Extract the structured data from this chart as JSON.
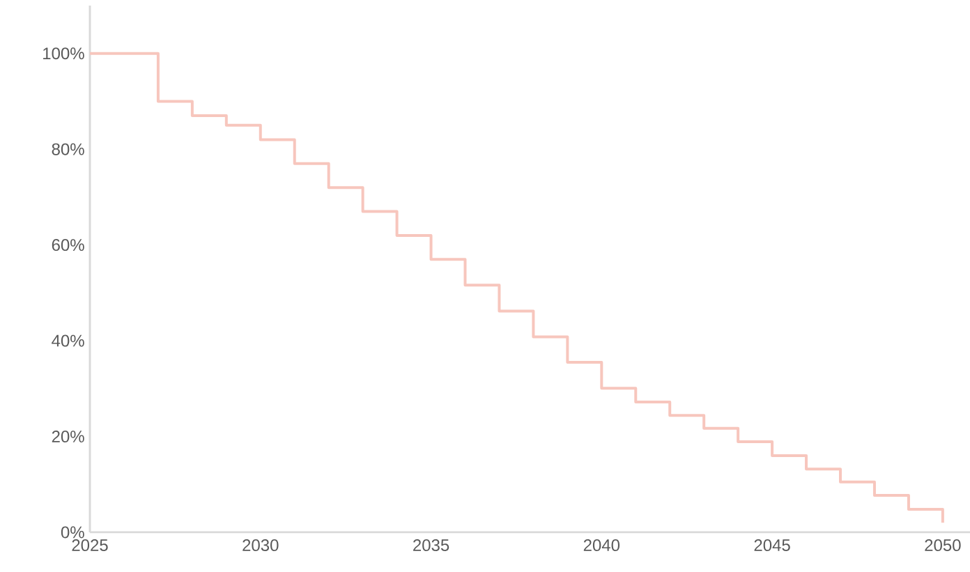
{
  "chart_data": {
    "type": "step",
    "x": [
      2025,
      2026,
      2027,
      2028,
      2029,
      2030,
      2031,
      2032,
      2033,
      2034,
      2035,
      2036,
      2037,
      2038,
      2039,
      2040,
      2041,
      2042,
      2043,
      2044,
      2045,
      2046,
      2047,
      2048,
      2049,
      2050
    ],
    "values": [
      100,
      100,
      90,
      87,
      85,
      82,
      77,
      72,
      67,
      62,
      57,
      51.6,
      46.2,
      40.8,
      35.5,
      30.1,
      27.2,
      24.4,
      21.7,
      18.9,
      16,
      13.2,
      10.5,
      7.7,
      4.8,
      2
    ],
    "color": "#f7c6bd",
    "xlim": [
      2025,
      2050.8
    ],
    "ylim": [
      0,
      110
    ],
    "xticks": [
      2025,
      2030,
      2035,
      2040,
      2045,
      2050
    ],
    "yticks": [
      {
        "value": 0,
        "label": "0%"
      },
      {
        "value": 20,
        "label": "20%"
      },
      {
        "value": 40,
        "label": "40%"
      },
      {
        "value": 60,
        "label": "60%"
      },
      {
        "value": 80,
        "label": "80%"
      },
      {
        "value": 100,
        "label": "100%"
      }
    ]
  }
}
